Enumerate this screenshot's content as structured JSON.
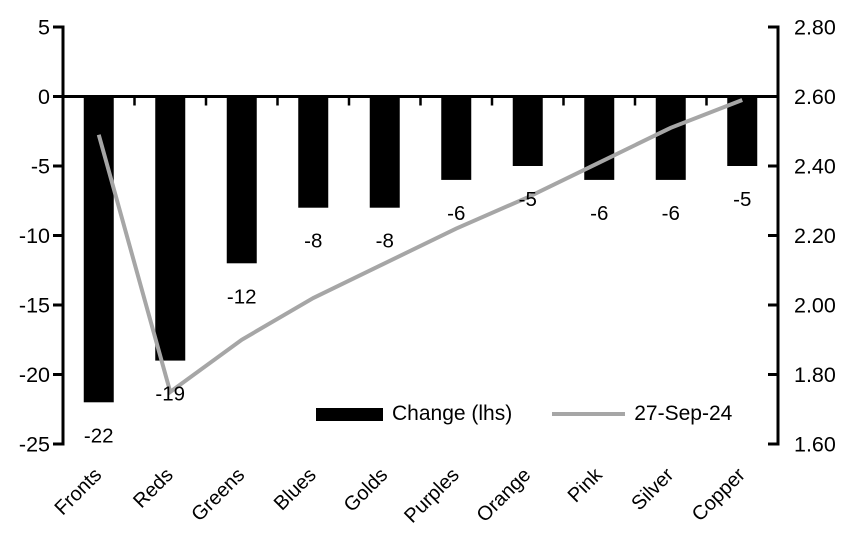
{
  "chart_data": {
    "type": "bar",
    "subtype": "combo-bar-line-dual-axis",
    "title": "",
    "xlabel": "",
    "ylabel": "",
    "grid": false,
    "background_color": "#ffffff",
    "categories": [
      "Fronts",
      "Reds",
      "Greens",
      "Blues",
      "Golds",
      "Purples",
      "Orange",
      "Pink",
      "Silver",
      "Copper"
    ],
    "series": [
      {
        "name": "Change (lhs)",
        "type": "bar",
        "axis": "left",
        "color": "#000000",
        "values": [
          -22,
          -19,
          -12,
          -8,
          -8,
          -6,
          -5,
          -6,
          -6,
          -5
        ],
        "data_labels": [
          "-22",
          "-19",
          "-12",
          "-8",
          "-8",
          "-6",
          "-5",
          "-6",
          "-6",
          "-5"
        ]
      },
      {
        "name": "27-Sep-24",
        "type": "line",
        "axis": "right",
        "color": "#a6a6a6",
        "values": [
          2.49,
          1.75,
          1.9,
          2.02,
          2.12,
          2.22,
          2.31,
          2.41,
          2.51,
          2.59
        ]
      }
    ],
    "left_axis": {
      "min": -25,
      "max": 5,
      "step": 5,
      "tick_labels": [
        "5",
        "0",
        "-5",
        "-10",
        "-15",
        "-20",
        "-25"
      ]
    },
    "right_axis": {
      "min": 1.6,
      "max": 2.8,
      "step": 0.2,
      "tick_labels": [
        "2.80",
        "2.60",
        "2.40",
        "2.20",
        "2.00",
        "1.80",
        "1.60"
      ]
    },
    "legend_position": "bottom-inside"
  }
}
